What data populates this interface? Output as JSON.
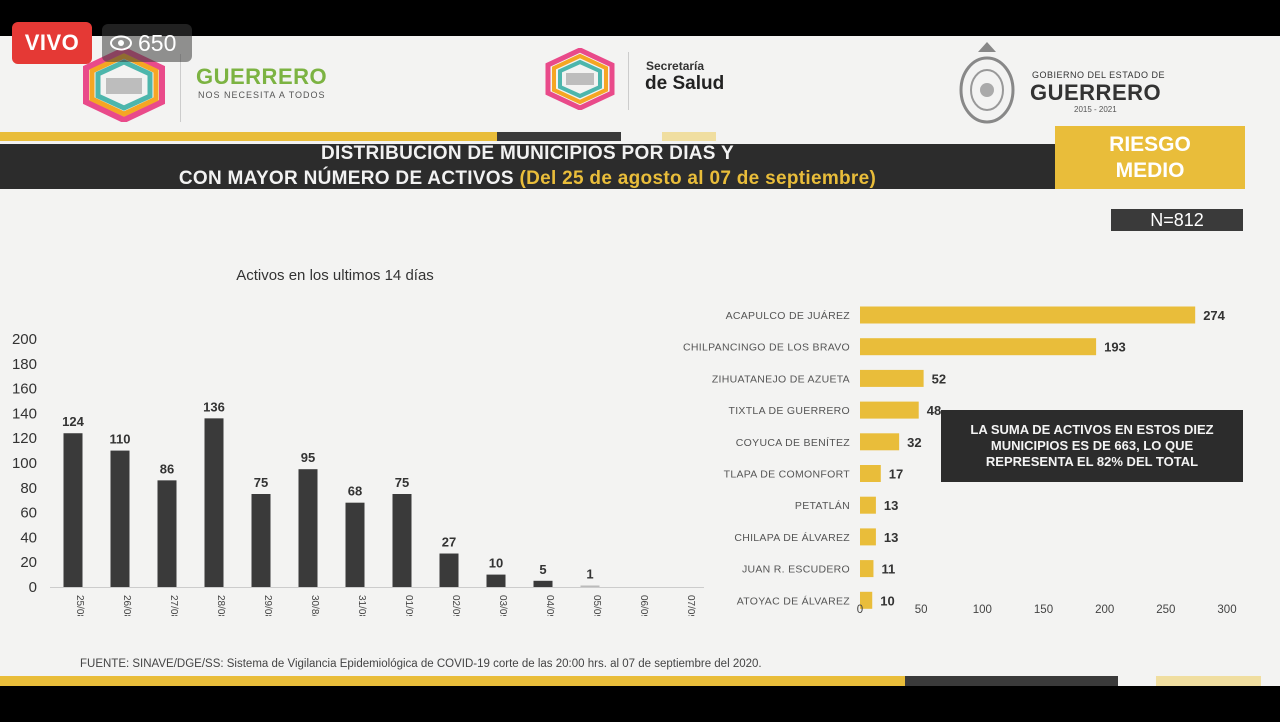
{
  "live": {
    "label": "VIVO",
    "viewers": "650"
  },
  "header": {
    "guerrero_title": "GUERRERO",
    "guerrero_sub": "NOS NECESITA A TODOS",
    "salud_small": "Secretaría",
    "salud_big": "de Salud",
    "gob_small": "GOBIERNO DEL ESTADO DE",
    "gob_big": "GUERRERO",
    "gob_years": "2015 - 2021"
  },
  "title": {
    "line1": "DISTRIBUCION DE MUNICIPIOS POR DIAS Y",
    "line2_main": "CON MAYOR NÚMERO DE ACTIVOS ",
    "line2_period": "(Del 25 de agosto al 07 de septiembre)"
  },
  "risk": {
    "line1": "RIESGO",
    "line2": "MEDIO"
  },
  "n_label": "N=812",
  "summary_box": {
    "line1": "LA SUMA DE ACTIVOS EN ESTOS DIEZ",
    "line2": "MUNICIPIOS ES DE 663, LO QUE",
    "line3": "REPRESENTA EL 82% DEL TOTAL"
  },
  "source": "FUENTE: SINAVE/DGE/SS: Sistema de Vigilancia Epidemiológica de COVID-19 corte de las 20:00 hrs. al 07 de septiembre del 2020.",
  "colors": {
    "bar_dark": "#3a3a3a",
    "bar_gold": "#e9bd3a",
    "band_dark": "#2c2c2c",
    "live_red": "#e53935"
  },
  "chart_data": [
    {
      "type": "bar",
      "title": "Activos en los ultimos 14 días",
      "categories": [
        "25/08/20",
        "26/08/20",
        "27/08/20",
        "28/08/20",
        "29/08/20",
        "30/8/20",
        "31/08/20",
        "01/09/20",
        "02/09/20",
        "03/09/20",
        "04/09/20",
        "05/09/20",
        "06/09/20",
        "07/09/20"
      ],
      "values": [
        124,
        110,
        86,
        136,
        75,
        95,
        68,
        75,
        27,
        10,
        5,
        1,
        null,
        null
      ],
      "ylim": [
        0,
        200
      ],
      "yticks": [
        0,
        20,
        40,
        60,
        80,
        100,
        120,
        140,
        160,
        180,
        200
      ],
      "grid": false
    },
    {
      "type": "bar",
      "orientation": "horizontal",
      "categories": [
        "ACAPULCO DE JUÁREZ",
        "CHILPANCINGO DE LOS BRAVO",
        "ZIHUATANEJO DE AZUETA",
        "TIXTLA DE GUERRERO",
        "COYUCA DE BENÍTEZ",
        "TLAPA DE COMONFORT",
        "PETATLÁN",
        "CHILAPA DE ÁLVAREZ",
        "JUAN R. ESCUDERO",
        "ATOYAC DE ÁLVAREZ"
      ],
      "values": [
        274,
        193,
        52,
        48,
        32,
        17,
        13,
        13,
        11,
        10
      ],
      "xlim": [
        0,
        300
      ],
      "xticks": [
        0,
        50,
        100,
        150,
        200,
        250,
        300
      ],
      "grid": false
    }
  ]
}
